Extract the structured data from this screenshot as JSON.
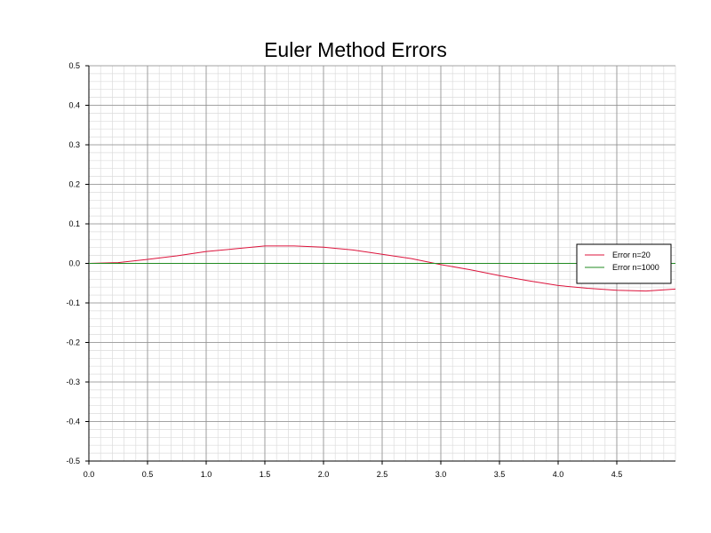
{
  "chart_data": {
    "type": "line",
    "title": "Euler Method Errors",
    "xlabel": "",
    "ylabel": "",
    "xlim": [
      0.0,
      5.0
    ],
    "ylim": [
      -0.5,
      0.5
    ],
    "x_ticks": [
      "0.0",
      "0.5",
      "1.0",
      "1.5",
      "2.0",
      "2.5",
      "3.0",
      "3.5",
      "4.0",
      "4.5"
    ],
    "y_ticks": [
      "0.5",
      "0.4",
      "0.3",
      "0.2",
      "0.1",
      "0.0",
      "-0.1",
      "-0.2",
      "-0.3",
      "-0.4",
      "-0.5"
    ],
    "grid": true,
    "legend_position": "right",
    "series": [
      {
        "name": "Error n=20",
        "color": "#dc143c",
        "x": [
          0.0,
          0.25,
          0.5,
          0.75,
          1.0,
          1.25,
          1.5,
          1.75,
          2.0,
          2.25,
          2.5,
          2.75,
          3.0,
          3.25,
          3.5,
          3.75,
          4.0,
          4.25,
          4.5,
          4.75,
          5.0
        ],
        "y": [
          0.0,
          0.002,
          0.01,
          0.019,
          0.03,
          0.037,
          0.044,
          0.044,
          0.041,
          0.034,
          0.023,
          0.012,
          -0.003,
          -0.016,
          -0.031,
          -0.044,
          -0.056,
          -0.063,
          -0.068,
          -0.07,
          -0.065
        ]
      },
      {
        "name": "Error n=1000",
        "color": "#228b22",
        "x": [
          0.0,
          5.0
        ],
        "y": [
          0.0,
          0.0
        ]
      }
    ]
  }
}
